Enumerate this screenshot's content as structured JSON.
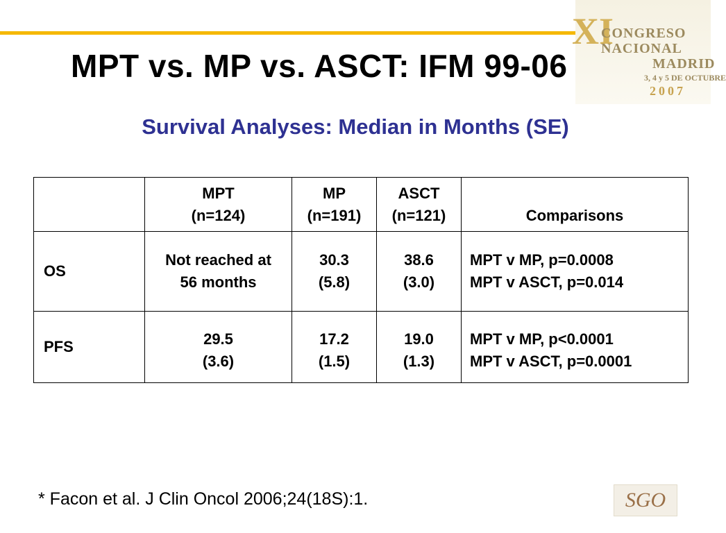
{
  "slide": {
    "title": "MPT vs. MP vs. ASCT: IFM 99-06",
    "subtitle": "Survival Analyses: Median in Months (SE)",
    "footnote": "* Facon et al. J Clin Oncol 2006;24(18S):1.",
    "accent_color": "#f5b800",
    "subtitle_color": "#2e3192"
  },
  "congress_logo": {
    "numeral": "XI",
    "line1": "CONGRESO",
    "line2": "NACIONAL",
    "line3": "MADRID",
    "line4": "3, 4 y 5 DE OCTUBRE",
    "year": "2007"
  },
  "sgo_logo": {
    "text": "SGO"
  },
  "table": {
    "headers": [
      {
        "line1": "",
        "line2": ""
      },
      {
        "line1": "MPT",
        "line2": "(n=124)"
      },
      {
        "line1": "MP",
        "line2": "(n=191)"
      },
      {
        "line1": "ASCT",
        "line2": "(n=121)"
      },
      {
        "line1": "",
        "line2": "Comparisons"
      }
    ],
    "rows": [
      {
        "label": "OS",
        "mpt": [
          "Not reached at",
          "56 months"
        ],
        "mp": [
          "30.3",
          "(5.8)"
        ],
        "asct": [
          "38.6",
          "(3.0)"
        ],
        "comparisons": [
          "MPT v MP, p=0.0008",
          "MPT v ASCT, p=0.014"
        ]
      },
      {
        "label": "PFS",
        "mpt": [
          "29.5",
          "(3.6)"
        ],
        "mp": [
          "17.2",
          "(1.5)"
        ],
        "asct": [
          "19.0",
          "(1.3)"
        ],
        "comparisons": [
          "MPT v MP, p<0.0001",
          "MPT v ASCT, p=0.0001"
        ]
      }
    ]
  }
}
